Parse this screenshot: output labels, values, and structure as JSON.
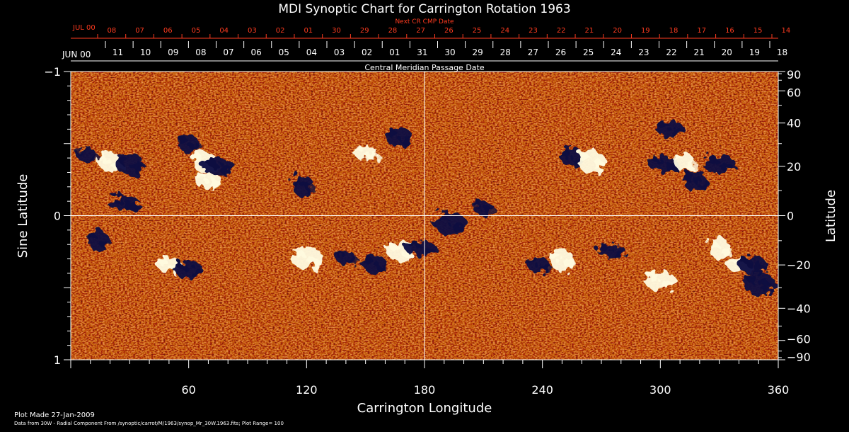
{
  "chart_data": {
    "type": "heatmap",
    "title": "MDI Synoptic Chart for Carrington Rotation 1963",
    "top_axis_label": "Next CR CMP Date",
    "top_axis_month": "JUL 00",
    "top_axis_ticks": [
      "08",
      "07",
      "06",
      "05",
      "04",
      "03",
      "02",
      "01",
      "30",
      "29",
      "28",
      "27",
      "26",
      "25",
      "24",
      "23",
      "22",
      "21",
      "20",
      "19",
      "18",
      "17",
      "16",
      "15",
      "14"
    ],
    "cmp_axis_label": "Central Meridian Passage Date",
    "cmp_axis_month": "JUN 00",
    "cmp_axis_ticks": [
      "11",
      "10",
      "09",
      "08",
      "07",
      "06",
      "05",
      "04",
      "03",
      "02",
      "01",
      "31",
      "30",
      "29",
      "28",
      "27",
      "26",
      "25",
      "24",
      "23",
      "22",
      "21",
      "20",
      "19",
      "18"
    ],
    "xlabel": "Carrington Longitude",
    "xlim": [
      0,
      360
    ],
    "x_ticks": [
      60,
      120,
      180,
      240,
      300,
      360
    ],
    "ylabel_left": "Sine Latitude",
    "ylim_left": [
      -1,
      1
    ],
    "y_ticks_left": [
      -1,
      0,
      1
    ],
    "ylabel_right": "Latitude",
    "y_ticks_right": [
      90,
      60,
      40,
      20,
      0,
      -20,
      -40,
      -60,
      -90
    ],
    "y_ticks_right_labels": [
      "90",
      "60",
      "40",
      "20",
      "0",
      "−20",
      "−40",
      "−60",
      "−90"
    ],
    "y_ticks_left_labels": [
      "1",
      "0",
      "−1"
    ],
    "plot_range": 100,
    "colors": {
      "background": "#000000",
      "field_base": "#d84a1a",
      "positive": "#fffbe0",
      "negative": "#0a0a40",
      "axes": "#ffffff",
      "date_axis": "#ff3b1f"
    },
    "active_regions": [
      {
        "lon": 8,
        "lat": 25,
        "polarity": "negative"
      },
      {
        "lon": 20,
        "lat": 22,
        "polarity": "positive"
      },
      {
        "lon": 30,
        "lat": 21,
        "polarity": "negative"
      },
      {
        "lon": 27,
        "lat": 5,
        "polarity": "negative"
      },
      {
        "lon": 60,
        "lat": 30,
        "polarity": "negative"
      },
      {
        "lon": 68,
        "lat": 22,
        "polarity": "positive"
      },
      {
        "lon": 70,
        "lat": 14,
        "polarity": "positive"
      },
      {
        "lon": 75,
        "lat": 20,
        "polarity": "negative"
      },
      {
        "lon": 118,
        "lat": 12,
        "polarity": "negative"
      },
      {
        "lon": 150,
        "lat": 26,
        "polarity": "positive"
      },
      {
        "lon": 167,
        "lat": 33,
        "polarity": "negative"
      },
      {
        "lon": 193,
        "lat": -3,
        "polarity": "negative"
      },
      {
        "lon": 210,
        "lat": 3,
        "polarity": "negative"
      },
      {
        "lon": 255,
        "lat": 24,
        "polarity": "negative"
      },
      {
        "lon": 265,
        "lat": 22,
        "polarity": "positive"
      },
      {
        "lon": 302,
        "lat": 21,
        "polarity": "negative"
      },
      {
        "lon": 312,
        "lat": 22,
        "polarity": "positive"
      },
      {
        "lon": 318,
        "lat": 14,
        "polarity": "negative"
      },
      {
        "lon": 305,
        "lat": 37,
        "polarity": "negative"
      },
      {
        "lon": 330,
        "lat": 21,
        "polarity": "negative"
      },
      {
        "lon": 14,
        "lat": -10,
        "polarity": "negative"
      },
      {
        "lon": 50,
        "lat": -20,
        "polarity": "positive"
      },
      {
        "lon": 60,
        "lat": -22,
        "polarity": "negative"
      },
      {
        "lon": 120,
        "lat": -17,
        "polarity": "positive"
      },
      {
        "lon": 140,
        "lat": -17,
        "polarity": "negative"
      },
      {
        "lon": 155,
        "lat": -20,
        "polarity": "negative"
      },
      {
        "lon": 168,
        "lat": -14,
        "polarity": "positive"
      },
      {
        "lon": 178,
        "lat": -13,
        "polarity": "negative"
      },
      {
        "lon": 238,
        "lat": -20,
        "polarity": "negative"
      },
      {
        "lon": 250,
        "lat": -18,
        "polarity": "positive"
      },
      {
        "lon": 275,
        "lat": -14,
        "polarity": "negative"
      },
      {
        "lon": 300,
        "lat": -27,
        "polarity": "positive"
      },
      {
        "lon": 330,
        "lat": -13,
        "polarity": "positive"
      },
      {
        "lon": 340,
        "lat": -20,
        "polarity": "positive"
      },
      {
        "lon": 347,
        "lat": -20,
        "polarity": "negative"
      },
      {
        "lon": 350,
        "lat": -28,
        "polarity": "negative"
      }
    ]
  },
  "footer": {
    "plot_made": "Plot Made 27-Jan-2009",
    "data_source": "Data from 30W - Radial Component From /synoptic/carrot/M/1963/synop_Mr_30W.1963.fits; Plot Range=  100"
  }
}
